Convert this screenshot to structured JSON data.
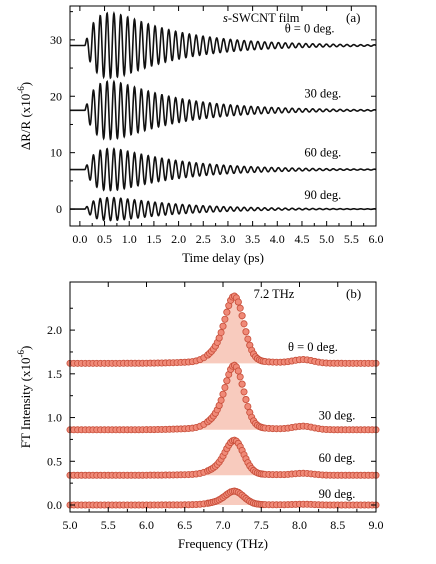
{
  "chart_data": [
    {
      "id": "a",
      "type": "line",
      "panel_label": "(a)",
      "title": "s-SWCNT film",
      "title_italic_prefix": "s",
      "title_rest": "-SWCNT film",
      "xlabel": "Time delay (ps)",
      "ylabel": "ΔR/R (x10",
      "ylabel_exp": "-6",
      "ylabel_tail": ")",
      "xlim": [
        -0.2,
        6.0
      ],
      "ylim": [
        -3,
        36
      ],
      "xticks": [
        "0.0",
        "0.5",
        "1.0",
        "1.5",
        "2.0",
        "2.5",
        "3.0",
        "3.5",
        "4.0",
        "4.5",
        "5.0",
        "5.5",
        "6.0"
      ],
      "yticks": [
        "0",
        "10",
        "20",
        "30"
      ],
      "model": {
        "frequency_thz": 7.2,
        "onset_ps": 0.1,
        "rise_ps": 0.3,
        "decay_ps": 1.3
      },
      "series": [
        {
          "label": "θ = 0 deg.",
          "offset": 29,
          "amplitude": 6.5,
          "label_x": 4.15,
          "label_y": 31.3
        },
        {
          "label": "30 deg.",
          "offset": 17.5,
          "amplitude": 5.8,
          "label_x": 4.55,
          "label_y": 19.8
        },
        {
          "label": "60 deg.",
          "offset": 7,
          "amplitude": 4.2,
          "label_x": 4.55,
          "label_y": 9.3
        },
        {
          "label": "90 deg.",
          "offset": 0,
          "amplitude": 2.3,
          "label_x": 4.55,
          "label_y": 1.8
        }
      ]
    },
    {
      "id": "b",
      "type": "scatter",
      "panel_label": "(b)",
      "peak_label": "7.2 THz",
      "xlabel": "Frequency (THz)",
      "ylabel": "FT Intensity (x10",
      "ylabel_exp": "-6",
      "ylabel_tail": ")",
      "xlim": [
        5.0,
        9.0
      ],
      "ylim": [
        -0.08,
        2.55
      ],
      "xticks": [
        "5.0",
        "5.5",
        "6.0",
        "6.5",
        "7.0",
        "7.5",
        "8.0",
        "8.5",
        "9.0"
      ],
      "yticks": [
        "0.0",
        "0.5",
        "1.0",
        "1.5",
        "2.0"
      ],
      "model": {
        "peak_thz": 7.15,
        "peak_width_thz": 0.12,
        "shoulder_thz": 6.9,
        "second_peak_thz": 8.05
      },
      "series": [
        {
          "label": "θ = 0 deg.",
          "baseline": 1.62,
          "peak": 0.73,
          "label_x": 7.85,
          "label_y": 1.76
        },
        {
          "label": "30 deg.",
          "baseline": 0.86,
          "peak": 0.7,
          "label_x": 8.25,
          "label_y": 0.98
        },
        {
          "label": "60 deg.",
          "baseline": 0.34,
          "peak": 0.38,
          "label_x": 8.25,
          "label_y": 0.49
        },
        {
          "label": "90 deg.",
          "baseline": 0.0,
          "peak": 0.15,
          "label_x": 8.25,
          "label_y": 0.08
        }
      ],
      "colors": {
        "marker_fill": "#f08a78",
        "marker_edge": "#c8503c",
        "area_fill": "#f6b9a8"
      }
    }
  ]
}
